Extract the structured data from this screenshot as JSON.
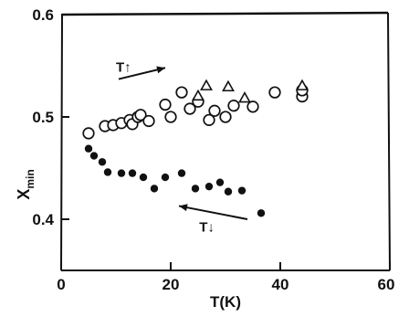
{
  "chart_data": {
    "type": "scatter",
    "title": "",
    "xlabel": "T(K)",
    "ylabel_main": "X",
    "ylabel_sub": "min",
    "xlim": [
      0,
      60
    ],
    "ylim": [
      0.35,
      0.6
    ],
    "xticks": [
      0,
      20,
      40,
      60
    ],
    "xtick_labels": [
      "0",
      "20",
      "40",
      "60"
    ],
    "yticks": [
      0.4,
      0.5,
      0.6
    ],
    "ytick_labels": [
      "0.4",
      "0.5",
      "0.6"
    ],
    "grid": false,
    "series": [
      {
        "marker": "open-circle",
        "points": [
          [
            5,
            0.484
          ],
          [
            8,
            0.491
          ],
          [
            9.5,
            0.492
          ],
          [
            11,
            0.494
          ],
          [
            12.5,
            0.497
          ],
          [
            13,
            0.493
          ],
          [
            14,
            0.5
          ],
          [
            14.5,
            0.502
          ],
          [
            16,
            0.496
          ],
          [
            19,
            0.512
          ],
          [
            20,
            0.5
          ],
          [
            22,
            0.524
          ],
          [
            23.5,
            0.508
          ],
          [
            25,
            0.515
          ],
          [
            27,
            0.497
          ],
          [
            28,
            0.506
          ],
          [
            30,
            0.5
          ],
          [
            31.5,
            0.511
          ],
          [
            35,
            0.51
          ],
          [
            39,
            0.524
          ],
          [
            44,
            0.52
          ],
          [
            44,
            0.526
          ]
        ]
      },
      {
        "marker": "open-triangle",
        "points": [
          [
            25,
            0.52
          ],
          [
            26.5,
            0.53
          ],
          [
            30.5,
            0.529
          ],
          [
            33.5,
            0.518
          ],
          [
            44,
            0.53
          ]
        ]
      },
      {
        "marker": "filled-circle",
        "points": [
          [
            5,
            0.469
          ],
          [
            6,
            0.462
          ],
          [
            7.5,
            0.456
          ],
          [
            8.5,
            0.446
          ],
          [
            11,
            0.445
          ],
          [
            13,
            0.445
          ],
          [
            15,
            0.441
          ],
          [
            17,
            0.43
          ],
          [
            19,
            0.441
          ],
          [
            22,
            0.445
          ],
          [
            24.5,
            0.43
          ],
          [
            27,
            0.432
          ],
          [
            29,
            0.436
          ],
          [
            30.5,
            0.427
          ],
          [
            33,
            0.428
          ],
          [
            36.5,
            0.406
          ]
        ]
      }
    ],
    "annotations": [
      {
        "label": "T↑",
        "x": 10,
        "y": 0.544,
        "arrow_from": [
          10.5,
          0.537
        ],
        "arrow_to": [
          19,
          0.548
        ]
      },
      {
        "label": "T↓",
        "x": 25.2,
        "y": 0.388,
        "arrow_from": [
          34,
          0.4
        ],
        "arrow_to": [
          21.5,
          0.413
        ]
      }
    ]
  }
}
